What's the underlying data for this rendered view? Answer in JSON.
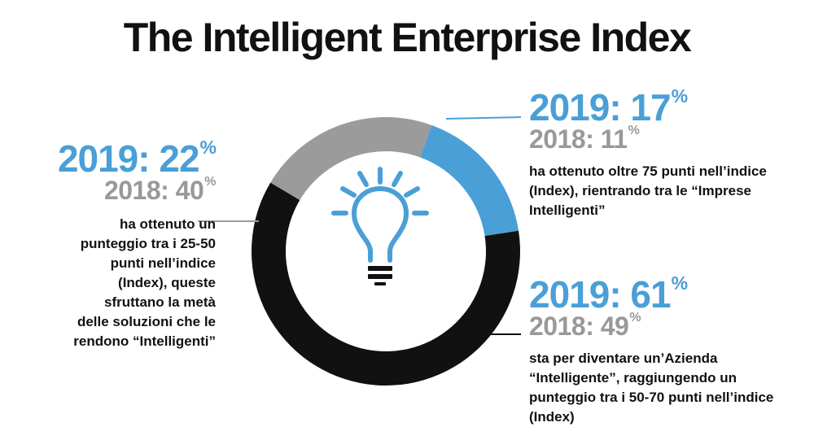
{
  "title": "The Intelligent Enterprise Index",
  "colors": {
    "blue": "#4a9fd6",
    "gray": "#9b9b9b",
    "black": "#111111",
    "gray_text": "#999999"
  },
  "icon": "lightbulb-icon",
  "chart_data": {
    "type": "pie",
    "title": "The Intelligent Enterprise Index",
    "categories": [
      "oltre 75 punti",
      "50-70 punti",
      "25-50 punti"
    ],
    "series": [
      {
        "name": "2019",
        "values": [
          17,
          61,
          22
        ]
      },
      {
        "name": "2018",
        "values": [
          11,
          49,
          40
        ]
      }
    ]
  },
  "stats": {
    "top": {
      "y2019": "2019: 17",
      "y2018": "2018: 11",
      "pct": "%",
      "text": "ha ottenuto oltre 75 punti nell’indice (Index), rientrando tra le “Imprese Intelligenti”"
    },
    "left": {
      "y2019": "2019: 22",
      "y2018": "2018: 40",
      "pct": "%",
      "text": "ha ottenuto un punteggio tra i 25-50 punti nell’indice (Index), queste sfruttano la metà delle soluzioni che le rendono “Intelligenti”"
    },
    "bottom": {
      "y2019": "2019: 61",
      "y2018": "2018: 49",
      "pct": "%",
      "text": "sta per diventare un’Azienda “Intelligente”, raggiungendo un punteggio tra i 50-70 punti nell’indice (Index)"
    }
  }
}
